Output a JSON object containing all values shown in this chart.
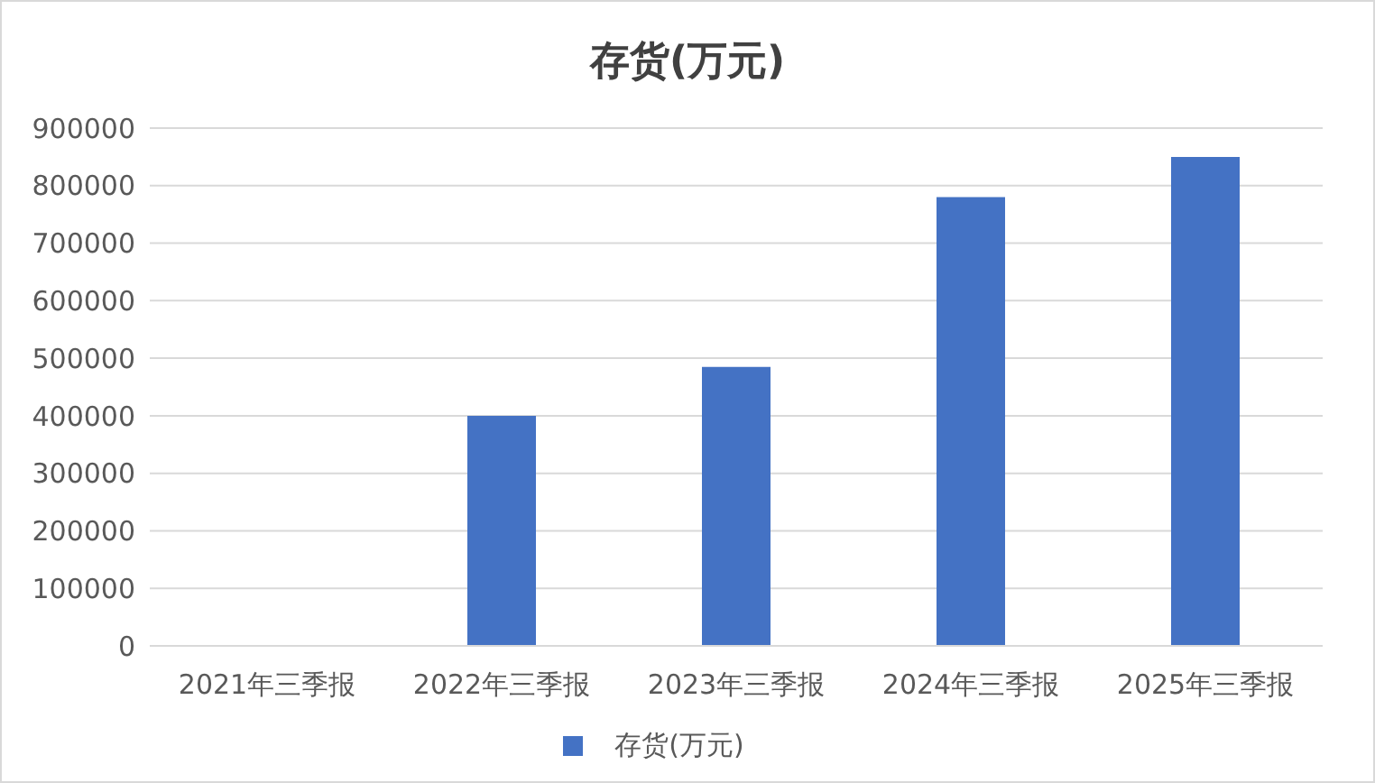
{
  "chart_data": {
    "type": "bar",
    "title": "存货(万元)",
    "categories": [
      "2021年三季报",
      "2022年三季报",
      "2023年三季报",
      "2024年三季报",
      "2025年三季报"
    ],
    "series": [
      {
        "name": "存货(万元)",
        "color": "#4472c4",
        "values": [
          null,
          400000,
          485000,
          780000,
          850000
        ]
      }
    ],
    "ylim": [
      0,
      900000
    ],
    "yticks": [
      0,
      100000,
      200000,
      300000,
      400000,
      500000,
      600000,
      700000,
      800000,
      900000
    ],
    "grid": "y",
    "legend": "bottom"
  }
}
